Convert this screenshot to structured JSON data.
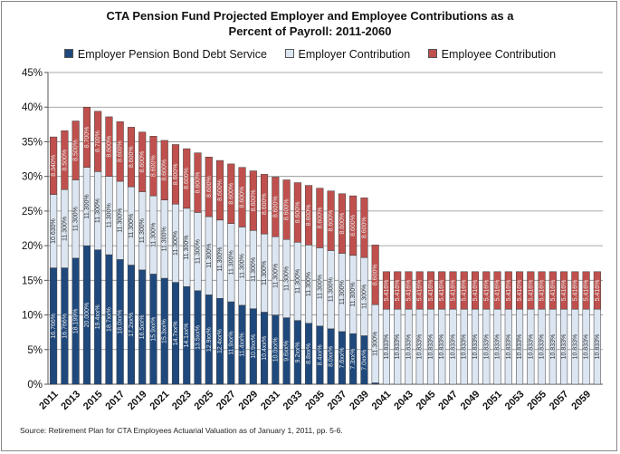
{
  "chart_data": {
    "type": "bar",
    "stacked": true,
    "title_line1": "CTA Pension Fund Projected Employer and Employee Contributions as a",
    "title_line2": "Percent of Payroll: 2011-2060",
    "source": "Source: Retirement Plan for CTA Employees Actuarial Valuation as of January 1, 2011, pp. 5-6.",
    "legend_position": "top",
    "ylim": [
      0,
      45
    ],
    "yticks": [
      "0%",
      "5%",
      "10%",
      "15%",
      "20%",
      "25%",
      "30%",
      "35%",
      "40%",
      "45%"
    ],
    "xtick_labels": [
      "2011",
      "2013",
      "2015",
      "2017",
      "2019",
      "2021",
      "2023",
      "2025",
      "2027",
      "2029",
      "2031",
      "2033",
      "2035",
      "2037",
      "2039",
      "2041",
      "2043",
      "2045",
      "2047",
      "2049",
      "2051",
      "2053",
      "2055",
      "2057",
      "2059"
    ],
    "categories": [
      "2011",
      "2012",
      "2013",
      "2014",
      "2015",
      "2016",
      "2017",
      "2018",
      "2019",
      "2020",
      "2021",
      "2022",
      "2023",
      "2024",
      "2025",
      "2026",
      "2027",
      "2028",
      "2029",
      "2030",
      "2031",
      "2032",
      "2033",
      "2034",
      "2035",
      "2036",
      "2037",
      "2038",
      "2039",
      "2040",
      "2041",
      "2042",
      "2043",
      "2044",
      "2045",
      "2046",
      "2047",
      "2048",
      "2049",
      "2050",
      "2051",
      "2052",
      "2053",
      "2054",
      "2055",
      "2056",
      "2057",
      "2058",
      "2059",
      "2060"
    ],
    "colors": {
      "bond": "#1f497d",
      "employer": "#dce6f2",
      "employee": "#c0504d"
    },
    "series": [
      {
        "name": "Employer Pension Bond Debt Service",
        "key": "bond",
        "values": [
          16.8,
          16.8,
          18.2,
          20.0,
          19.4,
          18.7,
          18.0,
          17.2,
          16.5,
          15.9,
          15.3,
          14.7,
          14.1,
          13.5,
          12.9,
          12.4,
          11.9,
          11.4,
          10.9,
          10.4,
          10.0,
          9.6,
          9.2,
          8.8,
          8.4,
          8.0,
          7.6,
          7.3,
          7.0,
          0.2,
          0,
          0,
          0,
          0,
          0,
          0,
          0,
          0,
          0,
          0,
          0,
          0,
          0,
          0,
          0,
          0,
          0,
          0,
          0,
          0
        ],
        "labels": [
          "16.766%",
          "16.766%",
          "18.199%",
          "20.000%",
          "19.4xx%",
          "18.7xx%",
          "18.0xx%",
          "17.2xx%",
          "16.5xx%",
          "15.9xx%",
          "15.3xx%",
          "14.7xx%",
          "14.1xx%",
          "13.5xx%",
          "12.9xx%",
          "12.4xx%",
          "11.9xx%",
          "11.4xx%",
          "10.9xx%",
          "10.4xx%",
          "10.0xx%",
          "9.6xx%",
          "9.2xx%",
          "8.8xx%",
          "8.4xx%",
          "8.0xx%",
          "7.6xx%",
          "7.3xx%",
          "7.0xx%",
          "0.2xx%",
          "",
          "",
          "",
          "",
          "",
          "",
          "",
          "",
          "",
          "",
          "",
          "",
          "",
          "",
          "",
          "",
          "",
          "",
          "",
          ""
        ]
      },
      {
        "name": "Employer Contribution",
        "key": "employer",
        "values": [
          10.6,
          11.3,
          11.3,
          11.3,
          11.3,
          11.3,
          11.3,
          11.3,
          11.3,
          11.3,
          11.3,
          11.3,
          11.3,
          11.3,
          11.3,
          11.3,
          11.3,
          11.3,
          11.3,
          11.3,
          11.3,
          11.3,
          11.3,
          11.3,
          11.3,
          11.3,
          11.3,
          11.3,
          11.3,
          11.3,
          10.833,
          10.833,
          10.833,
          10.833,
          10.833,
          10.833,
          10.833,
          10.833,
          10.833,
          10.833,
          10.833,
          10.833,
          10.833,
          10.833,
          10.833,
          10.833,
          10.833,
          10.833,
          10.833,
          10.833
        ],
        "labels": [
          "10.630%",
          "11.300%",
          "11.300%",
          "11.300%",
          "11.300%",
          "11.300%",
          "11.300%",
          "11.300%",
          "11.300%",
          "11.300%",
          "11.300%",
          "11.300%",
          "11.300%",
          "11.300%",
          "11.300%",
          "11.300%",
          "11.300%",
          "11.300%",
          "11.300%",
          "11.300%",
          "11.300%",
          "11.300%",
          "11.300%",
          "11.300%",
          "11.300%",
          "11.300%",
          "11.300%",
          "11.300%",
          "11.300%",
          "11.300%",
          "10.833%",
          "10.833%",
          "10.833%",
          "10.833%",
          "10.833%",
          "10.833%",
          "10.833%",
          "10.833%",
          "10.833%",
          "10.833%",
          "10.833%",
          "10.833%",
          "10.833%",
          "10.833%",
          "10.833%",
          "10.833%",
          "10.833%",
          "10.833%",
          "10.833%",
          "10.833%"
        ]
      },
      {
        "name": "Employee Contribution",
        "key": "employee",
        "values": [
          8.3,
          8.5,
          8.5,
          8.7,
          8.7,
          8.6,
          8.6,
          8.6,
          8.6,
          8.6,
          8.6,
          8.6,
          8.6,
          8.6,
          8.6,
          8.6,
          8.6,
          8.6,
          8.6,
          8.6,
          8.6,
          8.6,
          8.6,
          8.6,
          8.6,
          8.6,
          8.6,
          8.6,
          8.6,
          8.6,
          5.416,
          5.416,
          5.416,
          5.416,
          5.416,
          5.416,
          5.416,
          5.416,
          5.416,
          5.416,
          5.416,
          5.416,
          5.416,
          5.416,
          5.416,
          5.416,
          5.416,
          5.416,
          5.416,
          5.416
        ],
        "labels": [
          "8.340%",
          "8.500%",
          "8.500%",
          "8.700%",
          "8.700%",
          "8.600%",
          "8.600%",
          "8.600%",
          "8.600%",
          "8.600%",
          "8.600%",
          "8.600%",
          "8.600%",
          "8.600%",
          "8.600%",
          "8.600%",
          "8.600%",
          "8.600%",
          "8.600%",
          "8.600%",
          "8.600%",
          "8.600%",
          "8.600%",
          "8.600%",
          "8.600%",
          "8.600%",
          "8.600%",
          "8.600%",
          "8.600%",
          "8.600%",
          "5.416%",
          "5.416%",
          "5.416%",
          "5.416%",
          "5.416%",
          "5.416%",
          "5.416%",
          "5.416%",
          "5.416%",
          "5.416%",
          "5.416%",
          "5.416%",
          "5.416%",
          "5.416%",
          "5.416%",
          "5.416%",
          "5.416%",
          "5.416%",
          "5.416%",
          "5.416%"
        ]
      }
    ]
  }
}
